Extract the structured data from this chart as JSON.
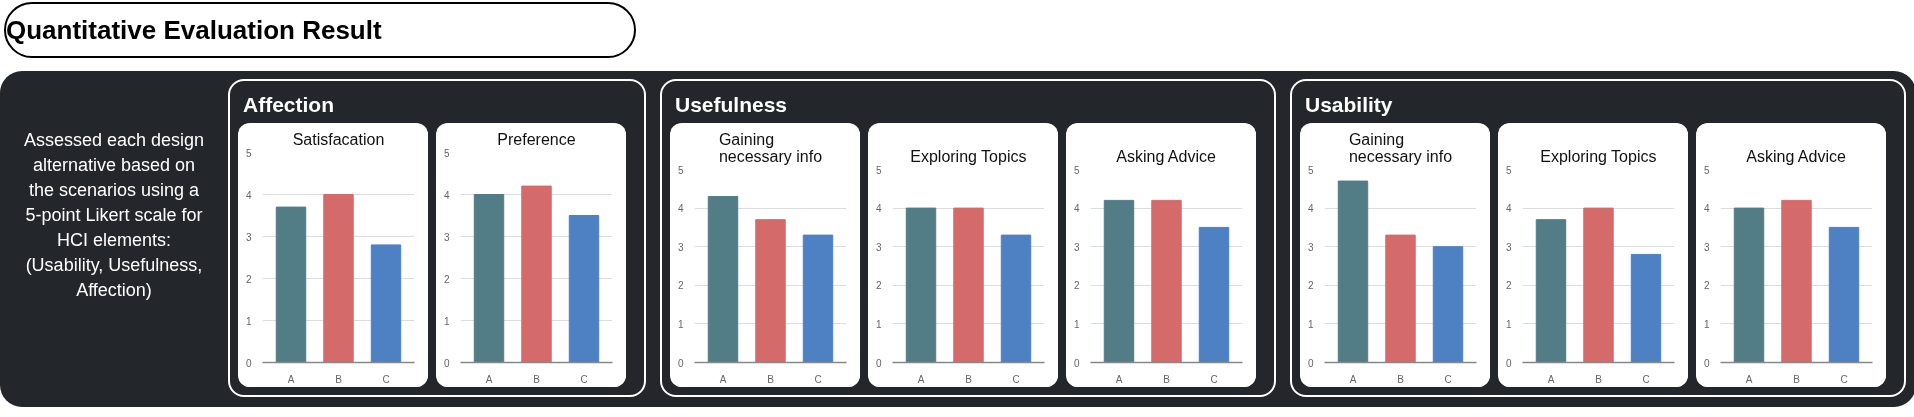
{
  "chart_data": [
    {
      "type": "other",
      "title": "Quantitative Evaluation Result",
      "annotations": [
        "Assessed each design alternative based on the scenarios using a 5-point Likert scale for HCI elements: (Usability, Usefulness, Affection)",
        "Affection",
        "Usefulness",
        "Usability"
      ]
    },
    {
      "type": "bar",
      "title": "Satisfacation",
      "categories": [
        "A",
        "B",
        "C"
      ],
      "values": [
        3.7,
        4.0,
        2.8
      ],
      "colors": [
        "#527d87",
        "#d46b6a",
        "#4e80c4"
      ],
      "ylim": [
        0,
        5
      ],
      "yticks": [
        0,
        1,
        2,
        3,
        4,
        5
      ],
      "grid": "y"
    },
    {
      "type": "bar",
      "title": "Preference",
      "categories": [
        "A",
        "B",
        "C"
      ],
      "values": [
        4.0,
        4.2,
        3.5
      ],
      "colors": [
        "#527d87",
        "#d46b6a",
        "#4e80c4"
      ],
      "ylim": [
        0,
        5
      ],
      "yticks": [
        0,
        1,
        2,
        3,
        4,
        5
      ],
      "grid": "y"
    },
    {
      "type": "bar",
      "title": "Gaining necessary info",
      "categories": [
        "A",
        "B",
        "C"
      ],
      "values": [
        4.3,
        3.7,
        3.3
      ],
      "colors": [
        "#527d87",
        "#d46b6a",
        "#4e80c4"
      ],
      "ylim": [
        0,
        5
      ],
      "yticks": [
        0,
        1,
        2,
        3,
        4,
        5
      ],
      "grid": "y"
    },
    {
      "type": "bar",
      "title": "Exploring Topics",
      "categories": [
        "A",
        "B",
        "C"
      ],
      "values": [
        4.0,
        4.0,
        3.3
      ],
      "colors": [
        "#527d87",
        "#d46b6a",
        "#4e80c4"
      ],
      "ylim": [
        0,
        5
      ],
      "yticks": [
        0,
        1,
        2,
        3,
        4,
        5
      ],
      "grid": "y"
    },
    {
      "type": "bar",
      "title": "Asking Advice",
      "categories": [
        "A",
        "B",
        "C"
      ],
      "values": [
        4.2,
        4.2,
        3.5
      ],
      "colors": [
        "#527d87",
        "#d46b6a",
        "#4e80c4"
      ],
      "ylim": [
        0,
        5
      ],
      "yticks": [
        0,
        1,
        2,
        3,
        4,
        5
      ],
      "grid": "y"
    },
    {
      "type": "bar",
      "title": "Gaining necessary info",
      "categories": [
        "A",
        "B",
        "C"
      ],
      "values": [
        4.7,
        3.3,
        3.0
      ],
      "colors": [
        "#527d87",
        "#d46b6a",
        "#4e80c4"
      ],
      "ylim": [
        0,
        5
      ],
      "yticks": [
        0,
        1,
        2,
        3,
        4,
        5
      ],
      "grid": "y"
    },
    {
      "type": "bar",
      "title": "Exploring Topics",
      "categories": [
        "A",
        "B",
        "C"
      ],
      "values": [
        3.7,
        4.0,
        2.8
      ],
      "colors": [
        "#527d87",
        "#d46b6a",
        "#4e80c4"
      ],
      "ylim": [
        0,
        5
      ],
      "yticks": [
        0,
        1,
        2,
        3,
        4,
        5
      ],
      "grid": "y"
    },
    {
      "type": "bar",
      "title": "Asking Advice",
      "categories": [
        "A",
        "B",
        "C"
      ],
      "values": [
        4.0,
        4.2,
        3.5
      ],
      "colors": [
        "#527d87",
        "#d46b6a",
        "#4e80c4"
      ],
      "ylim": [
        0,
        5
      ],
      "yticks": [
        0,
        1,
        2,
        3,
        4,
        5
      ],
      "grid": "y"
    }
  ]
}
